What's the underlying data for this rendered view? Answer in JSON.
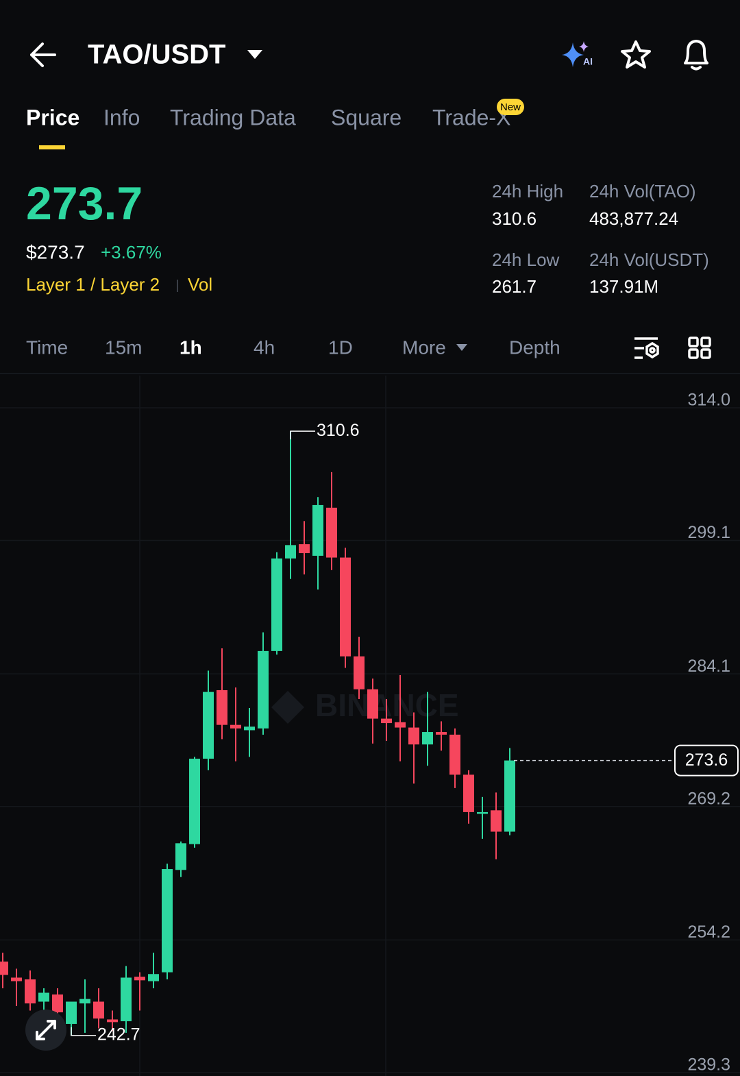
{
  "header": {
    "pair": "TAO/USDT"
  },
  "tabs": {
    "items": [
      "Price",
      "Info",
      "Trading Data",
      "Square",
      "Trade-X"
    ],
    "badge": "New"
  },
  "ticker": {
    "price": "273.7",
    "fiat_price": "$273.7",
    "change": "+3.67%",
    "tag": "Layer 1 / Layer 2",
    "tag2": "Vol"
  },
  "stats": [
    {
      "label": "24h High",
      "value": "310.6"
    },
    {
      "label": "24h Vol(TAO)",
      "value": "483,877.24"
    },
    {
      "label": "24h Low",
      "value": "261.7"
    },
    {
      "label": "24h Vol(USDT)",
      "value": "137.91M"
    }
  ],
  "intervals": {
    "items": [
      "Time",
      "15m",
      "1h",
      "4h",
      "1D",
      "More",
      "Depth"
    ]
  },
  "chart_data": {
    "type": "candlestick",
    "watermark": "BINANCE",
    "up_color": "#2ed8a0",
    "down_color": "#f6465d",
    "ylim": [
      239.3,
      314.0
    ],
    "yticks": [
      {
        "value": 314,
        "label": "314.0"
      },
      299.1,
      284.1,
      269.2,
      254.2,
      239.3
    ],
    "grid": true,
    "open": [
      251.0,
      249.2,
      249.0,
      246.5,
      247.3,
      244.0,
      246.3,
      246.5,
      244.5,
      244.3,
      249.3,
      248.8,
      249.8,
      261.3,
      264.2,
      273.8,
      281.5,
      277.6,
      277.0,
      277.2,
      285.9,
      296.3,
      297.9,
      296.6,
      302.0,
      296.4,
      285.3,
      281.6,
      278.3,
      277.9,
      277.3,
      275.4,
      276.8,
      276.5,
      272.0,
      267.6,
      268.0,
      265.6
    ],
    "high": [
      252.0,
      250.2,
      250.0,
      248.0,
      248.0,
      246.5,
      249.0,
      248.0,
      245.5,
      250.5,
      249.8,
      252.0,
      262.0,
      264.5,
      274.0,
      283.7,
      286.2,
      281.8,
      279.5,
      288.0,
      297.0,
      310.6,
      300.5,
      303.2,
      306.0,
      297.5,
      287.5,
      282.8,
      280.5,
      283.2,
      279.0,
      281.3,
      278.0,
      277.2,
      272.5,
      269.5,
      270.0,
      275.0
    ],
    "low": [
      248.0,
      246.0,
      245.5,
      245.0,
      243.5,
      242.7,
      243.0,
      243.5,
      243.2,
      243.0,
      245.5,
      248.0,
      249.0,
      260.5,
      263.8,
      272.5,
      276.0,
      273.5,
      274.0,
      276.5,
      285.5,
      294.0,
      294.5,
      292.8,
      295.0,
      284.0,
      280.5,
      275.5,
      275.8,
      273.5,
      271.0,
      273.0,
      274.7,
      270.5,
      266.5,
      264.8,
      262.5,
      265.2
    ],
    "close": [
      249.5,
      248.8,
      246.3,
      247.5,
      245.3,
      246.5,
      246.8,
      244.6,
      244.2,
      249.2,
      248.9,
      249.6,
      261.4,
      264.3,
      273.8,
      281.3,
      277.6,
      277.2,
      277.4,
      285.9,
      296.3,
      297.8,
      296.9,
      302.3,
      296.4,
      285.3,
      281.6,
      278.3,
      277.8,
      277.3,
      275.4,
      276.8,
      276.5,
      272.0,
      267.8,
      267.8,
      265.6,
      273.6
    ],
    "high_marker": 310.6,
    "low_marker": 242.7,
    "last_price": 273.6
  }
}
